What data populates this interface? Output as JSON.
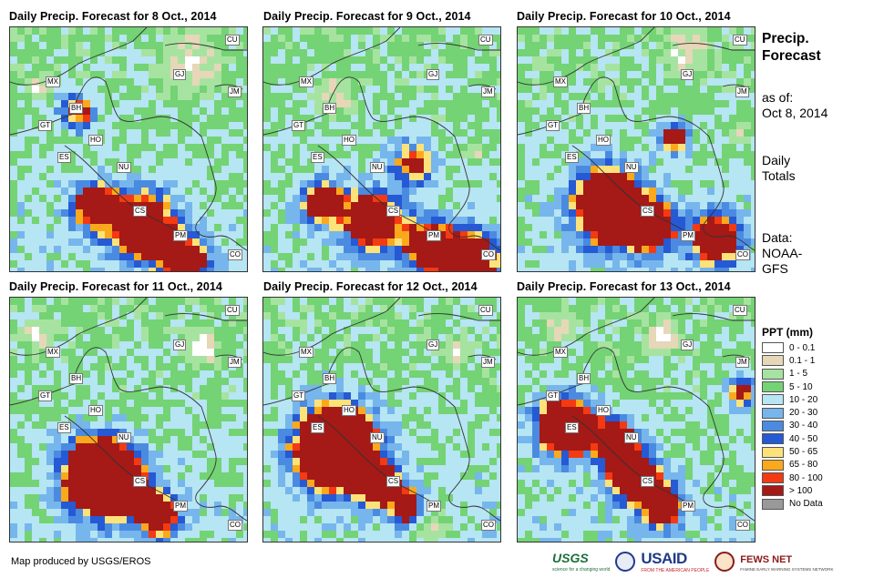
{
  "panels": [
    {
      "title": "Daily Precip. Forecast for 8 Oct., 2014"
    },
    {
      "title": "Daily Precip. Forecast for 9 Oct., 2014"
    },
    {
      "title": "Daily Precip. Forecast for 10 Oct., 2014"
    },
    {
      "title": "Daily Precip. Forecast for 11 Oct., 2014"
    },
    {
      "title": "Daily Precip. Forecast for 12 Oct., 2014"
    },
    {
      "title": "Daily Precip. Forecast for 13 Oct., 2014"
    }
  ],
  "country_labels": [
    "CU",
    "MX",
    "GJ",
    "JM",
    "BH",
    "GT",
    "HO",
    "ES",
    "NU",
    "CS",
    "PM",
    "CO"
  ],
  "sidebar": {
    "heading_line1": "Precip.",
    "heading_line2": "Forecast",
    "asof_label": "as of:",
    "asof_date": "Oct 8, 2014",
    "totals_line1": "Daily",
    "totals_line2": "Totals",
    "data_label": "Data:",
    "data_src1": "NOAA-",
    "data_src2": "GFS"
  },
  "legend": {
    "title": "PPT (mm)",
    "items": [
      {
        "label": "0 - 0.1",
        "color": "#ffffff"
      },
      {
        "label": "0.1 - 1",
        "color": "#e6d7b8"
      },
      {
        "label": "1 - 5",
        "color": "#a7e3a0"
      },
      {
        "label": "5 - 10",
        "color": "#74d374"
      },
      {
        "label": "10 - 20",
        "color": "#b6e5f3"
      },
      {
        "label": "20 - 30",
        "color": "#76b6ec"
      },
      {
        "label": "30 - 40",
        "color": "#4a8be1"
      },
      {
        "label": "40 - 50",
        "color": "#2659d4"
      },
      {
        "label": "50 - 65",
        "color": "#fde27a"
      },
      {
        "label": "65 - 80",
        "color": "#fba91c"
      },
      {
        "label": "80 - 100",
        "color": "#f33a12"
      },
      {
        "label": "> 100",
        "color": "#a51916"
      },
      {
        "label": "No Data",
        "color": "#999999"
      }
    ]
  },
  "credit": "Map produced by USGS/EROS",
  "logos": {
    "usgs": "USGS",
    "usgs_tagline": "science for a changing world",
    "usaid": "USAID",
    "usaid_tagline": "FROM THE AMERICAN PEOPLE",
    "fews": "FEWS NET",
    "fews_tagline": "FAMINE EARLY WARNING SYSTEMS NETWORK"
  }
}
